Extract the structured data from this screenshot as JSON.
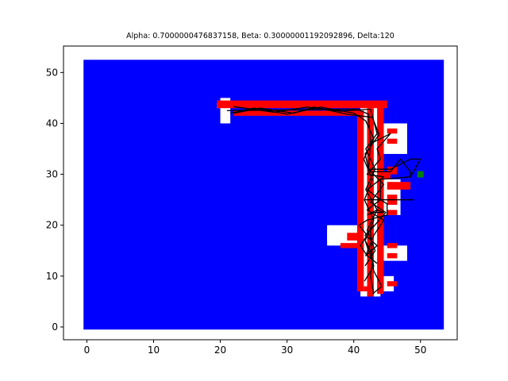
{
  "chart_data": {
    "type": "heatmap",
    "title": "Alpha: 0.7000000476837158, Beta: 0.30000001192092896, Delta:120",
    "xlabel": "",
    "ylabel": "",
    "xlim": [
      -3.5,
      55.5
    ],
    "ylim": [
      -2.5,
      55.2
    ],
    "x_ticks": [
      0,
      10,
      20,
      30,
      40,
      50
    ],
    "y_ticks": [
      0,
      10,
      20,
      30,
      40,
      50
    ],
    "grid": false,
    "colors": {
      "background_cells": "#0000ff",
      "wall_cells": "#ff0000",
      "free_cells": "#ffffff",
      "path": "#000000",
      "goal": "#008000"
    },
    "blue_region": [
      [
        -0.5,
        -0.5
      ],
      [
        53.5,
        52.5
      ]
    ],
    "white_cells": [
      [
        41,
        6,
        44,
        44
      ],
      [
        20,
        40,
        21.5,
        45
      ],
      [
        19.5,
        43,
        21.5,
        44
      ],
      [
        36,
        16,
        41,
        20
      ],
      [
        36,
        17,
        37,
        19
      ],
      [
        44,
        34,
        48,
        40
      ],
      [
        44,
        25,
        47,
        29
      ],
      [
        44,
        22,
        47,
        25
      ],
      [
        44,
        13,
        48,
        16
      ],
      [
        44,
        7,
        46,
        10
      ]
    ],
    "red_cells": [
      [
        19.5,
        43,
        45,
        44.5
      ],
      [
        22,
        41.5,
        41.5,
        42.5
      ],
      [
        40.5,
        7,
        41.5,
        42.5
      ],
      [
        43.5,
        6.5,
        44.5,
        44
      ],
      [
        42,
        6,
        43,
        43
      ],
      [
        44,
        29,
        45.5,
        30.5
      ],
      [
        45,
        30,
        46.5,
        31.5
      ],
      [
        45,
        27,
        48.5,
        28.5
      ],
      [
        45,
        24,
        46.5,
        26
      ],
      [
        45,
        22,
        46.5,
        23
      ],
      [
        45,
        38,
        46.5,
        39
      ],
      [
        45,
        36,
        46.5,
        37
      ],
      [
        38,
        15.5,
        41.5,
        16.5
      ],
      [
        39,
        17,
        41,
        18.5
      ],
      [
        45,
        15.5,
        46.5,
        16.5
      ],
      [
        45,
        13.5,
        46.5,
        14.5
      ],
      [
        45,
        8,
        46.5,
        9
      ],
      [
        41.5,
        7,
        42.5,
        8
      ]
    ],
    "goal": [
      50,
      30
    ],
    "path_segments": [
      [
        [
          21,
          42.5
        ],
        [
          40.5,
          42.8
        ],
        [
          42.2,
          41.8
        ],
        [
          42.5,
          36
        ],
        [
          42.2,
          31
        ],
        [
          44.5,
          28
        ],
        [
          42.5,
          24.5
        ],
        [
          44.8,
          22.5
        ],
        [
          42.5,
          19
        ],
        [
          42.8,
          13
        ],
        [
          42.5,
          10
        ],
        [
          43,
          6.5
        ]
      ],
      [
        [
          21.5,
          42
        ],
        [
          25,
          43
        ],
        [
          30,
          41.8
        ],
        [
          35,
          43.2
        ],
        [
          40,
          42
        ],
        [
          41.8,
          40.5
        ],
        [
          43,
          37
        ],
        [
          41.5,
          33
        ],
        [
          42.8,
          29
        ],
        [
          41.6,
          25
        ],
        [
          43,
          21
        ],
        [
          41.7,
          17
        ],
        [
          43,
          12
        ],
        [
          41.6,
          9
        ]
      ],
      [
        [
          22,
          43.3
        ],
        [
          28,
          42.2
        ],
        [
          33,
          43.2
        ],
        [
          38,
          42.4
        ],
        [
          42.5,
          42.8
        ],
        [
          43.5,
          38
        ],
        [
          41.8,
          35
        ],
        [
          43.2,
          31
        ],
        [
          41.8,
          27
        ],
        [
          43.5,
          23
        ],
        [
          42,
          19
        ],
        [
          43.2,
          15
        ],
        [
          41.7,
          12
        ]
      ],
      [
        [
          22,
          42
        ],
        [
          26,
          43
        ],
        [
          31,
          42
        ],
        [
          34,
          43.2
        ],
        [
          39,
          41.8
        ],
        [
          42.8,
          41.2
        ],
        [
          43.8,
          37.8
        ],
        [
          41.7,
          34
        ],
        [
          42.3,
          30.5
        ],
        [
          45.5,
          30.5
        ],
        [
          47,
          33
        ],
        [
          48.5,
          30.5
        ],
        [
          48.5,
          29.5
        ],
        [
          44,
          29
        ],
        [
          44,
          25
        ],
        [
          49,
          25
        ]
      ],
      [
        [
          42.5,
          36
        ],
        [
          45.5,
          38
        ],
        [
          43.5,
          35
        ],
        [
          44,
          33
        ],
        [
          42,
          30
        ],
        [
          44.5,
          29.5
        ],
        [
          42,
          27
        ],
        [
          44,
          25
        ],
        [
          42,
          23
        ],
        [
          44.5,
          21
        ],
        [
          43,
          18
        ],
        [
          41.8,
          14
        ],
        [
          43.5,
          16
        ],
        [
          41.7,
          18
        ],
        [
          43,
          20
        ]
      ],
      [
        [
          42.2,
          31
        ],
        [
          43.5,
          31
        ],
        [
          45.5,
          31
        ],
        [
          48.5,
          33
        ],
        [
          50,
          33
        ],
        [
          48.5,
          29.5
        ]
      ],
      [
        [
          42.5,
          22.5
        ],
        [
          44.5,
          22.5
        ],
        [
          43.5,
          23
        ],
        [
          42,
          22
        ]
      ],
      [
        [
          41.7,
          17
        ],
        [
          42.5,
          15
        ],
        [
          43,
          11
        ],
        [
          44.2,
          8
        ],
        [
          42.8,
          6.5
        ]
      ],
      [
        [
          41.7,
          25
        ],
        [
          44,
          25
        ],
        [
          45,
          24.2
        ],
        [
          45,
          22
        ],
        [
          42,
          21
        ],
        [
          40.8,
          20
        ],
        [
          42,
          18
        ],
        [
          41,
          16
        ],
        [
          42,
          14
        ],
        [
          43.5,
          12.5
        ]
      ]
    ]
  }
}
